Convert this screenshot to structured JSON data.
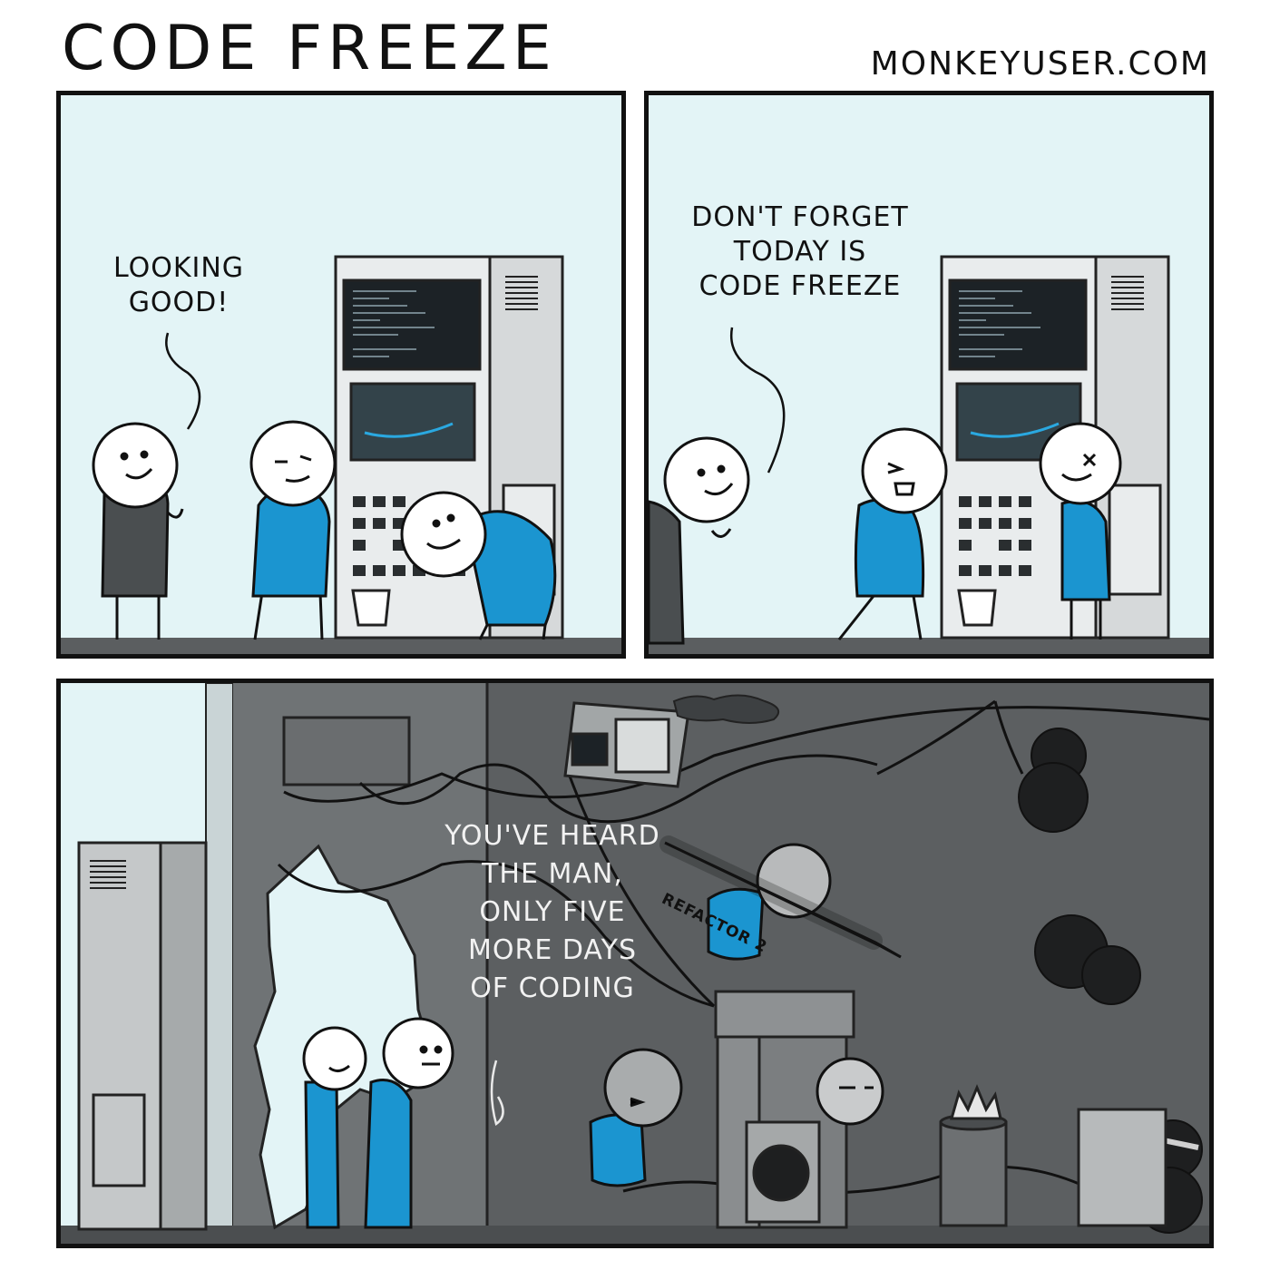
{
  "comic": {
    "title": "CODE FREEZE",
    "site": "MONKEYUSER.COM"
  },
  "panels": [
    {
      "speech": "LOOKING\nGOOD!"
    },
    {
      "speech": "DON'T FORGET\nTODAY IS\nCODE FREEZE"
    },
    {
      "speech": "YOU'VE HEARD\nTHE MAN,\nONLY FIVE\nMORE DAYS\nOF CODING",
      "weapon_label": "REFACTOR 2"
    }
  ],
  "colors": {
    "sky": "#e3f4f6",
    "shirt_blue": "#1b95d0",
    "shirt_dark": "#4a4e50",
    "machine": "#e9eced",
    "screen": "#1c2226",
    "ground": "#5b5e60",
    "chaos_bg": "#5c5f61"
  }
}
